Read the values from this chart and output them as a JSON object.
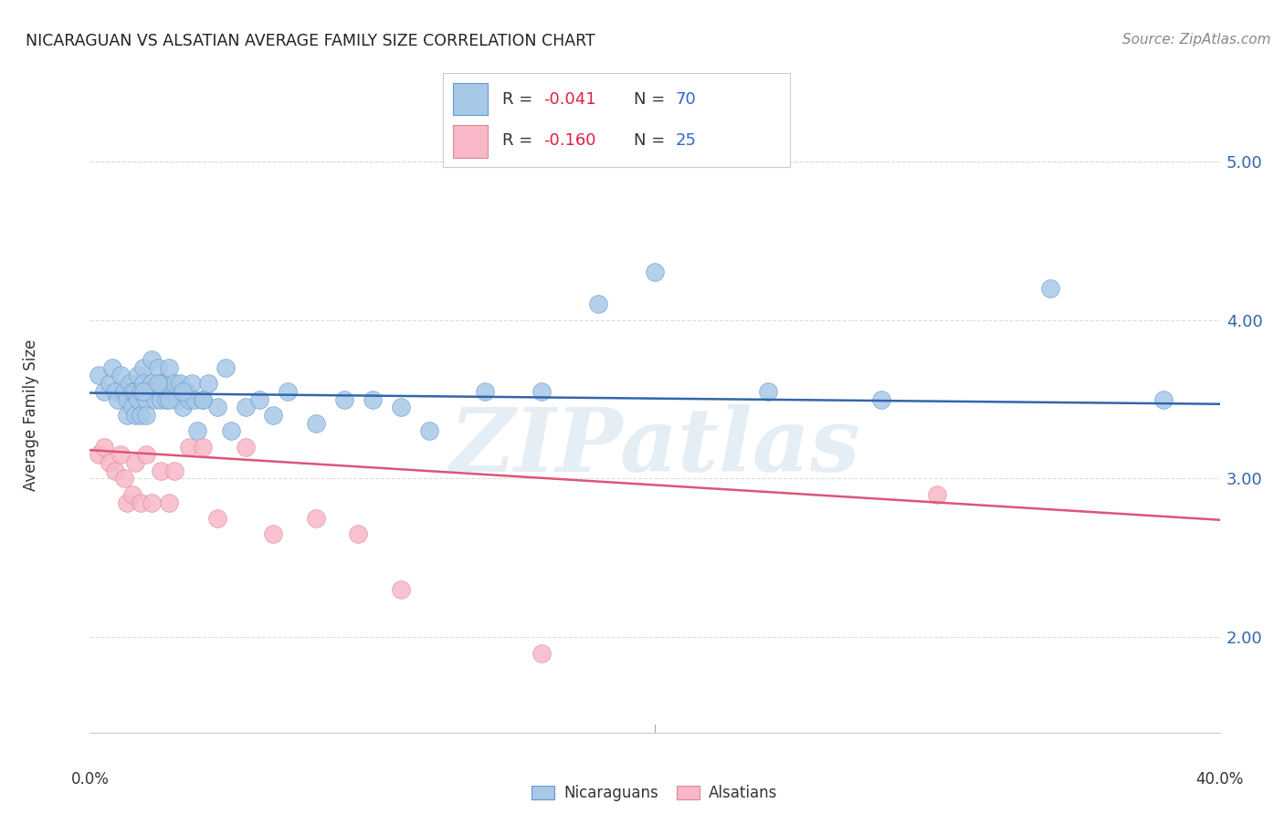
{
  "title": "NICARAGUAN VS ALSATIAN AVERAGE FAMILY SIZE CORRELATION CHART",
  "source": "Source: ZipAtlas.com",
  "ylabel": "Average Family Size",
  "watermark": "ZIPatlas",
  "legend_blue_r": "R = ",
  "legend_blue_rv": "-0.041",
  "legend_blue_n": "N = ",
  "legend_blue_nv": "70",
  "legend_pink_r": "R = ",
  "legend_pink_rv": "-0.160",
  "legend_pink_n": "N = ",
  "legend_pink_nv": "25",
  "yticks": [
    2.0,
    3.0,
    4.0,
    5.0
  ],
  "ylim": [
    1.4,
    5.4
  ],
  "xlim": [
    0.0,
    0.4
  ],
  "blue_scatter_x": [
    0.003,
    0.005,
    0.007,
    0.008,
    0.009,
    0.01,
    0.011,
    0.012,
    0.013,
    0.013,
    0.014,
    0.015,
    0.015,
    0.016,
    0.016,
    0.017,
    0.017,
    0.018,
    0.018,
    0.019,
    0.019,
    0.02,
    0.02,
    0.021,
    0.022,
    0.022,
    0.023,
    0.024,
    0.025,
    0.025,
    0.026,
    0.027,
    0.028,
    0.029,
    0.03,
    0.031,
    0.032,
    0.033,
    0.034,
    0.035,
    0.036,
    0.037,
    0.038,
    0.04,
    0.042,
    0.045,
    0.048,
    0.05,
    0.055,
    0.06,
    0.065,
    0.07,
    0.08,
    0.09,
    0.1,
    0.11,
    0.12,
    0.14,
    0.16,
    0.18,
    0.2,
    0.24,
    0.28,
    0.34,
    0.38,
    0.019,
    0.024,
    0.028,
    0.033,
    0.04
  ],
  "blue_scatter_y": [
    3.65,
    3.55,
    3.6,
    3.7,
    3.55,
    3.5,
    3.65,
    3.55,
    3.5,
    3.4,
    3.6,
    3.55,
    3.45,
    3.55,
    3.4,
    3.65,
    3.5,
    3.55,
    3.4,
    3.7,
    3.6,
    3.5,
    3.4,
    3.55,
    3.75,
    3.6,
    3.5,
    3.7,
    3.6,
    3.5,
    3.6,
    3.5,
    3.7,
    3.55,
    3.6,
    3.5,
    3.6,
    3.45,
    3.55,
    3.5,
    3.6,
    3.5,
    3.3,
    3.5,
    3.6,
    3.45,
    3.7,
    3.3,
    3.45,
    3.5,
    3.4,
    3.55,
    3.35,
    3.5,
    3.5,
    3.45,
    3.3,
    3.55,
    3.55,
    4.1,
    4.3,
    3.55,
    3.5,
    4.2,
    3.5,
    3.55,
    3.6,
    3.5,
    3.55,
    3.5
  ],
  "blue_trend_x": [
    0.0,
    0.4
  ],
  "blue_trend_y": [
    3.54,
    3.47
  ],
  "pink_scatter_x": [
    0.003,
    0.005,
    0.007,
    0.009,
    0.011,
    0.012,
    0.013,
    0.015,
    0.016,
    0.018,
    0.02,
    0.022,
    0.025,
    0.028,
    0.03,
    0.035,
    0.04,
    0.045,
    0.055,
    0.065,
    0.08,
    0.095,
    0.11,
    0.16,
    0.3
  ],
  "pink_scatter_y": [
    3.15,
    3.2,
    3.1,
    3.05,
    3.15,
    3.0,
    2.85,
    2.9,
    3.1,
    2.85,
    3.15,
    2.85,
    3.05,
    2.85,
    3.05,
    3.2,
    3.2,
    2.75,
    3.2,
    2.65,
    2.75,
    2.65,
    2.3,
    1.9,
    2.9
  ],
  "pink_trend_x": [
    0.0,
    0.4
  ],
  "pink_trend_y": [
    3.18,
    2.74
  ],
  "blue_color": "#a8c8e8",
  "blue_edge_color": "#6699cc",
  "blue_trend_color": "#3366aa",
  "pink_color": "#f8b8c8",
  "pink_edge_color": "#dd8899",
  "pink_trend_color": "#dd5577",
  "title_color": "#222222",
  "source_color": "#888888",
  "ytick_color": "#3366aa",
  "text_color": "#333333",
  "legend_r_color": "#dd2244",
  "legend_n_color": "#3366cc",
  "background_color": "#ffffff",
  "grid_color": "#dddddd"
}
